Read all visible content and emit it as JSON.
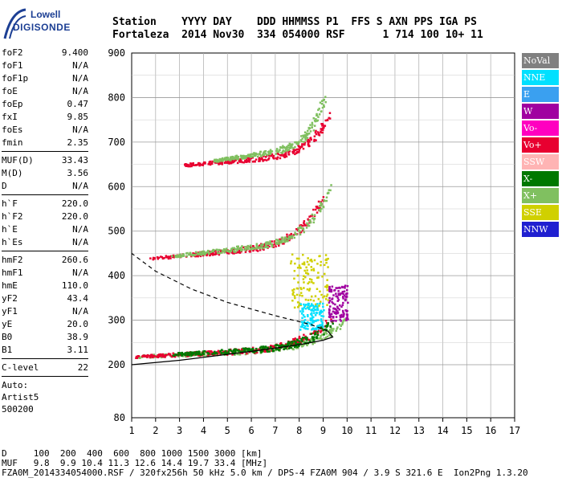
{
  "logo": {
    "line1": "Lowell",
    "line2": "DIGISONDE",
    "color": "#1c3f94"
  },
  "header": {
    "line1": "Station    YYYY DAY    DDD HHMMSS P1  FFS S AXN PPS IGA PS",
    "line2": "Fortaleza  2014 Nov30  334 054000 RSF      1 714 100 10+ 11"
  },
  "params": [
    {
      "name": "foF2",
      "value": "9.400"
    },
    {
      "name": "foF1",
      "value": "N/A"
    },
    {
      "name": "foF1p",
      "value": "N/A"
    },
    {
      "name": "foE",
      "value": "N/A"
    },
    {
      "name": "foEp",
      "value": "0.47"
    },
    {
      "name": "fxI",
      "value": "9.85"
    },
    {
      "name": "foEs",
      "value": "N/A"
    },
    {
      "name": "fmin",
      "value": "2.35"
    },
    {
      "sep": true
    },
    {
      "name": "MUF(D)",
      "value": "33.43"
    },
    {
      "name": "M(D)",
      "value": "3.56"
    },
    {
      "name": "D",
      "value": "N/A"
    },
    {
      "sep": true
    },
    {
      "name": "h`F",
      "value": "220.0"
    },
    {
      "name": "h`F2",
      "value": "220.0"
    },
    {
      "name": "h`E",
      "value": "N/A"
    },
    {
      "name": "h`Es",
      "value": "N/A"
    },
    {
      "sep": true
    },
    {
      "name": "hmF2",
      "value": "260.6"
    },
    {
      "name": "hmF1",
      "value": "N/A"
    },
    {
      "name": "hmE",
      "value": "110.0"
    },
    {
      "name": "yF2",
      "value": "43.4"
    },
    {
      "name": "yF1",
      "value": "N/A"
    },
    {
      "name": "yE",
      "value": "20.0"
    },
    {
      "name": "B0",
      "value": "38.9"
    },
    {
      "name": "B1",
      "value": "3.11"
    },
    {
      "sep": true
    },
    {
      "name": "C-level",
      "value": "22"
    },
    {
      "sep": true
    },
    {
      "text": "Auto:"
    },
    {
      "text": "Artist5"
    },
    {
      "text": "500200"
    }
  ],
  "legend": [
    {
      "label": "NoVal",
      "color": "#808080"
    },
    {
      "label": "NNE",
      "color": "#00e0ff"
    },
    {
      "label": "E",
      "color": "#3aa0f0"
    },
    {
      "label": "W",
      "color": "#a000a0"
    },
    {
      "label": "Vo-",
      "color": "#ff00c0"
    },
    {
      "label": "Vo+",
      "color": "#e80030"
    },
    {
      "label": "SSW",
      "color": "#ffb4b4"
    },
    {
      "label": "X-",
      "color": "#007800"
    },
    {
      "label": "X+",
      "color": "#80c060"
    },
    {
      "label": "SSE",
      "color": "#d0d000"
    },
    {
      "label": "NNW",
      "color": "#2020d0"
    }
  ],
  "footer": {
    "line1": "D     100  200  400  600  800 1000 1500 3000 [km]",
    "line2": "MUF   9.8  9.9 10.4 11.3 12.6 14.4 19.7 33.4 [MHz]",
    "line3": "FZA0M_2014334054000.RSF / 320fx256h 50 kHz 5.0 km / DPS-4 FZA0M 904 / 3.9 S 321.6 E  Ion2Png 1.3.20"
  },
  "chart_data": {
    "type": "scatter",
    "x_ticks": [
      1,
      2,
      3,
      4,
      5,
      6,
      7,
      8,
      9,
      10,
      11,
      12,
      13,
      14,
      15,
      16,
      17
    ],
    "y_ticks": [
      80,
      200,
      300,
      400,
      500,
      600,
      700,
      800,
      900
    ],
    "xlim": [
      1,
      17
    ],
    "y_axis_segments": [
      [
        80,
        200
      ],
      [
        200,
        900
      ]
    ],
    "grid": true,
    "legend_position": "right",
    "traces": [
      {
        "name": "X+",
        "start": [
          1.2,
          220
        ],
        "end": [
          9.9,
          300
        ],
        "curvature": 0.6
      },
      {
        "name": "Vo+",
        "start": [
          1.2,
          220
        ],
        "end": [
          9.3,
          305
        ],
        "curvature": 0.7
      },
      {
        "name": "X-",
        "start": [
          2.7,
          225
        ],
        "end": [
          9.4,
          300
        ],
        "curvature": 0.6
      },
      {
        "name": "Vo+",
        "start": [
          1.8,
          440
        ],
        "end": [
          9.0,
          580
        ],
        "curvature": 0.8
      },
      {
        "name": "X+",
        "start": [
          2.6,
          445
        ],
        "end": [
          9.3,
          605
        ],
        "curvature": 0.8
      },
      {
        "name": "Vo+",
        "start": [
          3.2,
          650
        ],
        "end": [
          9.2,
          760
        ],
        "curvature": 0.8
      },
      {
        "name": "X+",
        "start": [
          4.4,
          660
        ],
        "end": [
          9.0,
          800
        ],
        "curvature": 0.8
      },
      {
        "name": "SSE",
        "start": [
          7.6,
          330
        ],
        "end": [
          9.2,
          450
        ],
        "curvature": 0.0
      },
      {
        "name": "W",
        "start": [
          9.2,
          300
        ],
        "end": [
          10.0,
          380
        ],
        "curvature": 0.0
      },
      {
        "name": "NNE",
        "start": [
          8.0,
          280
        ],
        "end": [
          9.0,
          340
        ],
        "curvature": 0.0
      }
    ],
    "profile_curve": [
      [
        1.0,
        200
      ],
      [
        3.0,
        210
      ],
      [
        6.0,
        230
      ],
      [
        8.0,
        245
      ],
      [
        9.0,
        255
      ],
      [
        9.4,
        262
      ],
      [
        9.2,
        275
      ],
      [
        8.5,
        290
      ],
      [
        7.0,
        310
      ],
      [
        5.0,
        340
      ],
      [
        3.5,
        370
      ],
      [
        2.0,
        410
      ],
      [
        1.0,
        450
      ]
    ],
    "profile_dashed_from": [
      9.2,
      275
    ]
  }
}
